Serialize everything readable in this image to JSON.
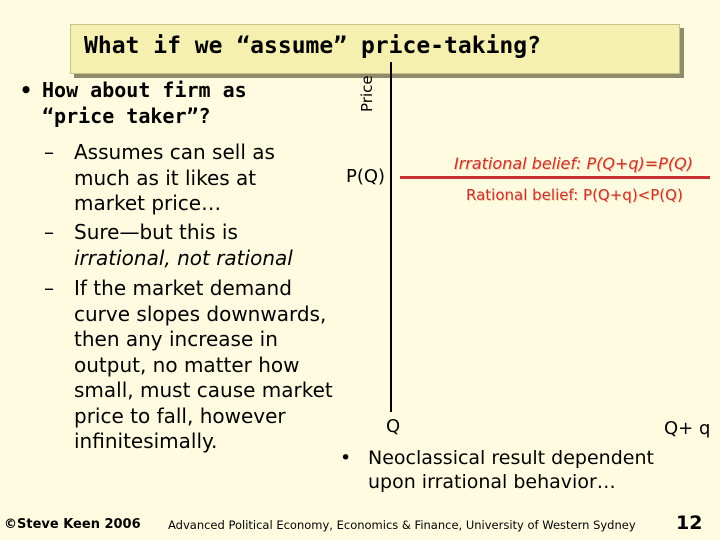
{
  "title": "What if we “assume” price-taking?",
  "bullet": {
    "line1": "How about firm as",
    "line2": "“price taker”?"
  },
  "sub_points": [
    {
      "lines": [
        "Assumes can sell as",
        "much as it likes at",
        "market price…"
      ]
    },
    {
      "lines": [
        "Sure—but this is",
        "irrational, not rational"
      ]
    },
    {
      "lines": [
        "If the market demand",
        "curve slopes downwards,",
        "then any increase in",
        "output, no matter how",
        "small, must cause market",
        "price to fall, however",
        "infinitesimally."
      ]
    }
  ],
  "graph": {
    "y_axis_label": "Price",
    "price_label": "P(Q)",
    "irrational_belief": "Irrational belief: P(Q+q)=P(Q)",
    "rational_belief": "Rational belief: P(Q+q)<P(Q)",
    "q_label": "Q",
    "qq_label": "Q+ q",
    "line_color": "#c83232"
  },
  "conclusion": {
    "line1": "Neoclassical result dependent",
    "line2": "upon irrational behavior…"
  },
  "footer": {
    "author": "©Steve Keen 2006",
    "course": "Advanced Political Economy, Economics & Finance, University of Western Sydney",
    "page_number": "12"
  }
}
